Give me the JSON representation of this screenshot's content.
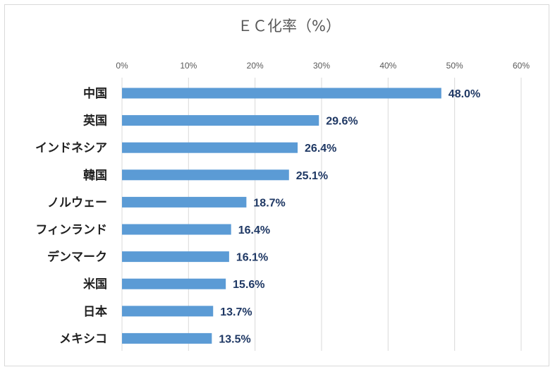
{
  "chart_data": {
    "type": "bar",
    "orientation": "horizontal",
    "title": "ＥＣ化率（%）",
    "xlabel": "",
    "ylabel": "",
    "xlim": [
      0,
      60
    ],
    "x_ticks": [
      "0%",
      "10%",
      "20%",
      "30%",
      "40%",
      "50%",
      "60%"
    ],
    "x_axis_position": "top",
    "grid": true,
    "legend": "none",
    "categories": [
      "中国",
      "英国",
      "インドネシア",
      "韓国",
      "ノルウェー",
      "フィンランド",
      "デンマーク",
      "米国",
      "日本",
      "メキシコ"
    ],
    "values": [
      48.0,
      29.6,
      26.4,
      25.1,
      18.7,
      16.4,
      16.1,
      15.6,
      13.7,
      13.5
    ],
    "value_labels": [
      "48.0%",
      "29.6%",
      "26.4%",
      "25.1%",
      "18.7%",
      "16.4%",
      "16.1%",
      "15.6%",
      "13.7%",
      "13.5%"
    ],
    "bar_color": "#5b9bd5",
    "value_label_color": "#1f3864"
  }
}
